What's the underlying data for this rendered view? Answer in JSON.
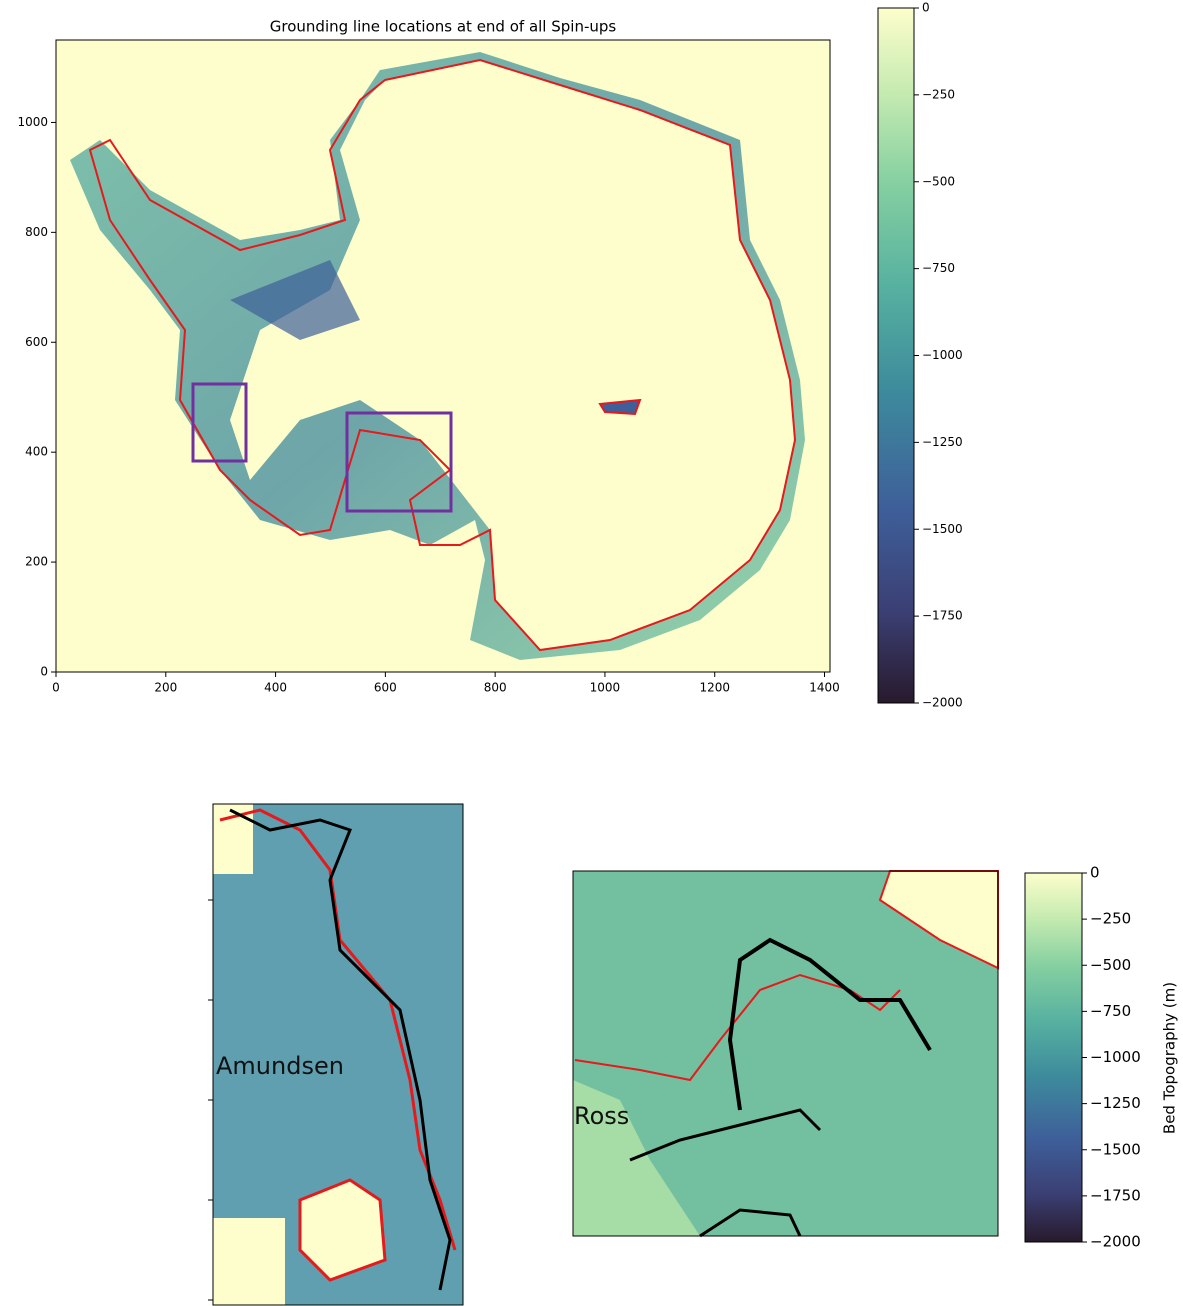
{
  "chart_data": [
    {
      "type": "image",
      "title": "Grounding line locations at end of all Spin-ups",
      "xlim": [
        0,
        1410
      ],
      "ylim": [
        0,
        1150
      ],
      "xticks": [
        0,
        200,
        400,
        600,
        800,
        1000,
        1200,
        1400
      ],
      "yticks": [
        0,
        200,
        400,
        600,
        800,
        1000
      ]
    },
    {
      "type": "colorbar",
      "ylim": [
        -2000,
        0
      ],
      "yticks": [
        0,
        {
          "value": -250,
          "label": "−250"
        },
        {
          "value": -500,
          "label": "−500"
        },
        {
          "value": -750,
          "label": "−750"
        },
        {
          "value": -1000,
          "label": "−1000"
        },
        {
          "value": -1250,
          "label": "−1250"
        },
        {
          "value": -1500,
          "label": "−1500"
        },
        {
          "value": -1750,
          "label": "−1750"
        },
        {
          "value": -2000,
          "label": "−2000"
        }
      ]
    },
    {
      "type": "image",
      "annotation": "Amundsen"
    },
    {
      "type": "image",
      "annotation": "Ross"
    },
    {
      "type": "colorbar",
      "ylabel": "Bed Topography (m)",
      "ylim": [
        -2000,
        0
      ],
      "yticks": [
        0,
        {
          "value": -250,
          "label": "−250"
        },
        {
          "value": -500,
          "label": "−500"
        },
        {
          "value": -750,
          "label": "−750"
        },
        {
          "value": -1000,
          "label": "−1000"
        },
        {
          "value": -1250,
          "label": "−1250"
        },
        {
          "value": -1500,
          "label": "−1500"
        },
        {
          "value": -1750,
          "label": "−1750"
        },
        {
          "value": -2000,
          "label": "−2000"
        }
      ]
    }
  ]
}
